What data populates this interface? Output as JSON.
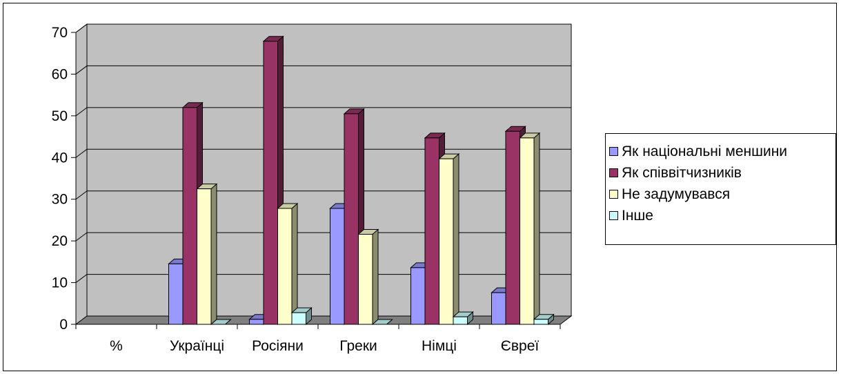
{
  "chart_data": {
    "type": "bar",
    "categories": [
      "%",
      "Українці",
      "Росіяни",
      "Греки",
      "Німці",
      "Євреї"
    ],
    "series": [
      {
        "name": "Як національні меншини",
        "values": [
          null,
          14.5,
          1.2,
          27.8,
          13.6,
          7.6
        ],
        "color": "#9999FF"
      },
      {
        "name": "Як співвітчизників",
        "values": [
          null,
          52,
          67.9,
          50.5,
          44.7,
          46.3
        ],
        "color": "#993366"
      },
      {
        "name": "Не задумувався",
        "values": [
          null,
          32.5,
          27.8,
          21.6,
          39.7,
          44.7
        ],
        "color": "#FFFFCC"
      },
      {
        "name": "Інше",
        "values": [
          null,
          0,
          2.8,
          0,
          1.8,
          1.2
        ],
        "color": "#CCFFFF"
      }
    ],
    "ylim": [
      0,
      70
    ],
    "yticks": [
      0,
      10,
      20,
      30,
      40,
      50,
      60,
      70
    ],
    "grid": true,
    "legend": "right",
    "wall_color": "#C0C0C0",
    "floor_color": "#808080"
  }
}
